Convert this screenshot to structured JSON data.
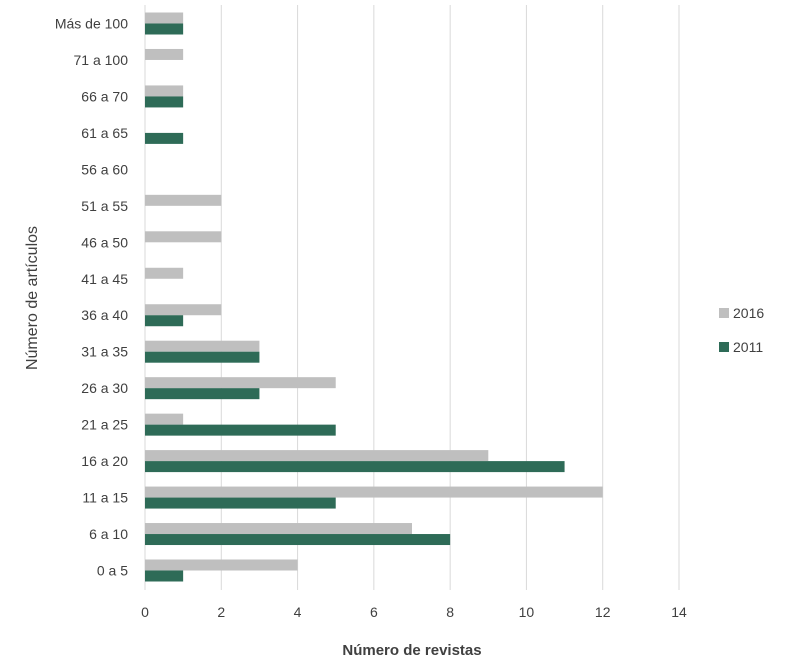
{
  "chart_data": {
    "type": "bar",
    "orientation": "horizontal",
    "categories": [
      "0 a 5",
      "6 a 10",
      "11 a 15",
      "16 a 20",
      "21 a 25",
      "26 a 30",
      "31 a 35",
      "36 a 40",
      "41 a 45",
      "46 a 50",
      "51 a 55",
      "56 a 60",
      "61 a 65",
      "66 a 70",
      "71 a 100",
      "Más de 100"
    ],
    "series": [
      {
        "name": "2016",
        "color": "#bfbfbf",
        "values": [
          4,
          7,
          12,
          9,
          1,
          5,
          3,
          2,
          1,
          2,
          2,
          0,
          0,
          1,
          1,
          1
        ]
      },
      {
        "name": "2011",
        "color": "#2e6b57",
        "values": [
          1,
          8,
          5,
          11,
          5,
          3,
          3,
          1,
          0,
          0,
          0,
          0,
          1,
          1,
          0,
          1
        ]
      }
    ],
    "title": "",
    "xlabel": "Número de revistas",
    "ylabel": "Número de artículos",
    "xlim": [
      0,
      14
    ],
    "xticks": [
      "0",
      "2",
      "4",
      "6",
      "8",
      "10",
      "12",
      "14"
    ],
    "grid": true,
    "legend_position": "right"
  }
}
